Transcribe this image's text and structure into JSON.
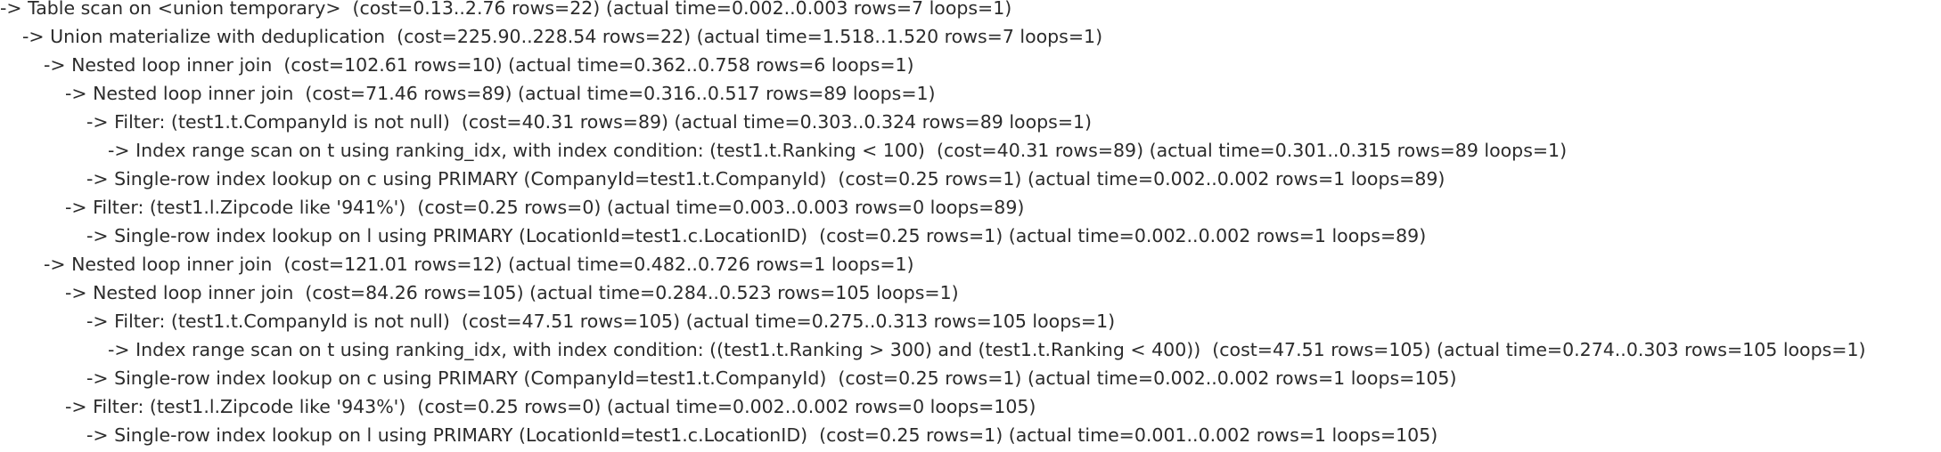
{
  "explain_plan": {
    "lines": [
      {
        "depth": 0,
        "text": "-> Table scan on <union temporary>  (cost=0.13..2.76 rows=22) (actual time=0.002..0.003 rows=7 loops=1)"
      },
      {
        "depth": 1,
        "text": "-> Union materialize with deduplication  (cost=225.90..228.54 rows=22) (actual time=1.518..1.520 rows=7 loops=1)"
      },
      {
        "depth": 2,
        "text": "-> Nested loop inner join  (cost=102.61 rows=10) (actual time=0.362..0.758 rows=6 loops=1)"
      },
      {
        "depth": 3,
        "text": "-> Nested loop inner join  (cost=71.46 rows=89) (actual time=0.316..0.517 rows=89 loops=1)"
      },
      {
        "depth": 4,
        "text": "-> Filter: (test1.t.CompanyId is not null)  (cost=40.31 rows=89) (actual time=0.303..0.324 rows=89 loops=1)"
      },
      {
        "depth": 5,
        "text": "-> Index range scan on t using ranking_idx, with index condition: (test1.t.Ranking < 100)  (cost=40.31 rows=89) (actual time=0.301..0.315 rows=89 loops=1)"
      },
      {
        "depth": 4,
        "text": "-> Single-row index lookup on c using PRIMARY (CompanyId=test1.t.CompanyId)  (cost=0.25 rows=1) (actual time=0.002..0.002 rows=1 loops=89)"
      },
      {
        "depth": 3,
        "text": "-> Filter: (test1.l.Zipcode like '941%')  (cost=0.25 rows=0) (actual time=0.003..0.003 rows=0 loops=89)"
      },
      {
        "depth": 4,
        "text": "-> Single-row index lookup on l using PRIMARY (LocationId=test1.c.LocationID)  (cost=0.25 rows=1) (actual time=0.002..0.002 rows=1 loops=89)"
      },
      {
        "depth": 2,
        "text": "-> Nested loop inner join  (cost=121.01 rows=12) (actual time=0.482..0.726 rows=1 loops=1)"
      },
      {
        "depth": 3,
        "text": "-> Nested loop inner join  (cost=84.26 rows=105) (actual time=0.284..0.523 rows=105 loops=1)"
      },
      {
        "depth": 4,
        "text": "-> Filter: (test1.t.CompanyId is not null)  (cost=47.51 rows=105) (actual time=0.275..0.313 rows=105 loops=1)"
      },
      {
        "depth": 5,
        "text": "-> Index range scan on t using ranking_idx, with index condition: ((test1.t.Ranking > 300) and (test1.t.Ranking < 400))  (cost=47.51 rows=105) (actual time=0.274..0.303 rows=105 loops=1)"
      },
      {
        "depth": 4,
        "text": "-> Single-row index lookup on c using PRIMARY (CompanyId=test1.t.CompanyId)  (cost=0.25 rows=1) (actual time=0.002..0.002 rows=1 loops=105)"
      },
      {
        "depth": 3,
        "text": "-> Filter: (test1.l.Zipcode like '943%')  (cost=0.25 rows=0) (actual time=0.002..0.002 rows=0 loops=105)"
      },
      {
        "depth": 4,
        "text": "-> Single-row index lookup on l using PRIMARY (LocationId=test1.c.LocationID)  (cost=0.25 rows=1) (actual time=0.001..0.002 rows=1 loops=105)"
      }
    ]
  }
}
